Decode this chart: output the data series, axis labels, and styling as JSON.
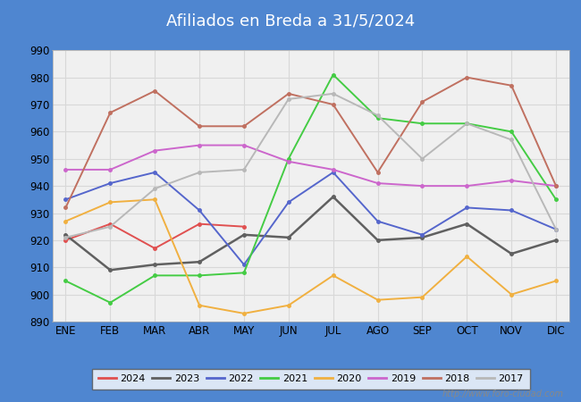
{
  "title": "Afiliados en Breda a 31/5/2024",
  "title_color": "#ffffff",
  "title_bg_color": "#4f86d0",
  "months": [
    "ENE",
    "FEB",
    "MAR",
    "ABR",
    "MAY",
    "JUN",
    "JUL",
    "AGO",
    "SEP",
    "OCT",
    "NOV",
    "DIC"
  ],
  "series_order": [
    "2024",
    "2023",
    "2022",
    "2021",
    "2020",
    "2019",
    "2018",
    "2017"
  ],
  "series": {
    "2024": {
      "color": "#e05050",
      "linewidth": 1.4,
      "data": [
        920,
        926,
        917,
        926,
        925,
        null,
        null,
        null,
        null,
        null,
        null,
        null
      ]
    },
    "2023": {
      "color": "#606060",
      "linewidth": 1.8,
      "data": [
        922,
        909,
        911,
        912,
        922,
        921,
        936,
        920,
        921,
        926,
        915,
        920
      ]
    },
    "2022": {
      "color": "#5566cc",
      "linewidth": 1.4,
      "data": [
        935,
        941,
        945,
        931,
        911,
        934,
        945,
        927,
        922,
        932,
        931,
        924
      ]
    },
    "2021": {
      "color": "#44cc44",
      "linewidth": 1.4,
      "data": [
        905,
        897,
        907,
        907,
        908,
        950,
        981,
        965,
        963,
        963,
        960,
        935
      ]
    },
    "2020": {
      "color": "#f0b040",
      "linewidth": 1.4,
      "data": [
        927,
        934,
        935,
        896,
        893,
        896,
        907,
        898,
        899,
        914,
        900,
        905
      ]
    },
    "2019": {
      "color": "#cc66cc",
      "linewidth": 1.4,
      "data": [
        946,
        946,
        953,
        955,
        955,
        949,
        946,
        941,
        940,
        940,
        942,
        940
      ]
    },
    "2018": {
      "color": "#c07060",
      "linewidth": 1.4,
      "data": [
        932,
        967,
        975,
        962,
        962,
        974,
        970,
        945,
        971,
        980,
        977,
        940
      ]
    },
    "2017": {
      "color": "#b8b8b8",
      "linewidth": 1.4,
      "data": [
        921,
        925,
        939,
        945,
        946,
        972,
        974,
        966,
        950,
        963,
        957,
        924
      ]
    }
  },
  "ylim": [
    890,
    990
  ],
  "yticks": [
    890,
    900,
    910,
    920,
    930,
    940,
    950,
    960,
    970,
    980,
    990
  ],
  "plot_bg_color": "#f0f0f0",
  "fig_bg_color": "#ffffff",
  "outer_bg_color": "#4f86d0",
  "grid_color": "#d8d8d8",
  "footer_text": "http://www.foro-ciudad.com"
}
